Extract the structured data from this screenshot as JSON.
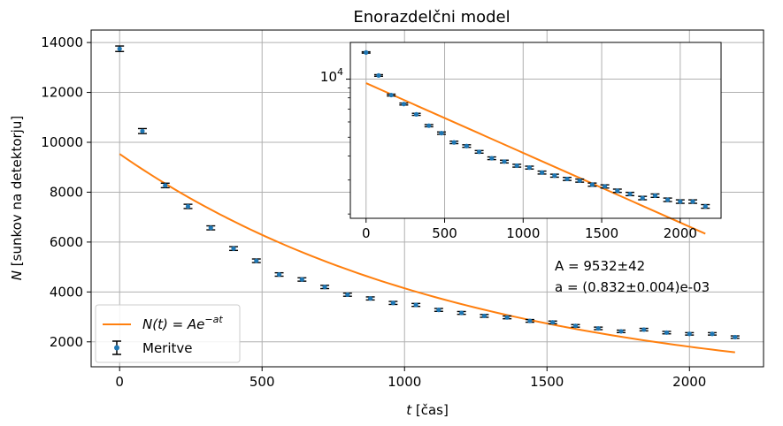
{
  "chart_data": [
    {
      "type": "scatter",
      "title": "Enorazdelčni model",
      "xlabel_var": "t",
      "xlabel_unit": " [čas]",
      "ylabel_var": "N",
      "ylabel_unit": " [sunkov na detektorju]",
      "xlim": [
        -100,
        2260
      ],
      "ylim": [
        1000,
        14500
      ],
      "xticks": [
        "0",
        "500",
        "1000",
        "1500",
        "2000"
      ],
      "yticks": [
        "2000",
        "4000",
        "6000",
        "8000",
        "10000",
        "12000",
        "14000"
      ],
      "grid": true,
      "legend_position": "lower-left",
      "series": [
        {
          "name": "Meritve",
          "kind": "errorbar",
          "color": "#1f77b4",
          "x": [
            0,
            80,
            160,
            240,
            320,
            400,
            480,
            560,
            640,
            720,
            800,
            880,
            960,
            1040,
            1120,
            1200,
            1280,
            1360,
            1440,
            1520,
            1600,
            1680,
            1760,
            1840,
            1920,
            2000,
            2080,
            2160
          ],
          "y": [
            13750,
            10450,
            8270,
            7430,
            6570,
            5740,
            5250,
            4700,
            4500,
            4200,
            3890,
            3740,
            3560,
            3480,
            3280,
            3160,
            3040,
            2980,
            2840,
            2780,
            2640,
            2540,
            2420,
            2490,
            2370,
            2320,
            2320,
            2190
          ],
          "err": [
            110,
            100,
            90,
            85,
            80,
            75,
            72,
            68,
            67,
            65,
            62,
            61,
            60,
            59,
            57,
            56,
            55,
            55,
            53,
            53,
            51,
            50,
            49,
            50,
            49,
            48,
            48,
            47
          ]
        },
        {
          "name": "N(t) = Ae^{-at}",
          "kind": "line",
          "color": "#ff7f0e",
          "A": 9532,
          "a": 0.000832,
          "x_range": [
            0,
            2160
          ]
        }
      ],
      "legend": {
        "fit_label_lhs": "N(t) = Ae",
        "fit_label_exp": "−at",
        "data_label": "Meritve"
      },
      "annotation": {
        "line1": "A = 9532±42",
        "line2": "a = (0.832±0.004)e-03"
      }
    },
    {
      "type": "scatter",
      "title": "",
      "yscale": "log",
      "xlim": [
        -100,
        2260
      ],
      "ylim": [
        1900,
        15500
      ],
      "xticks": [
        "0",
        "500",
        "1000",
        "1500",
        "2000"
      ],
      "ytick_label_base": "10",
      "ytick_label_exp": "4",
      "grid": true,
      "series_ref": "same data and fit as main chart"
    }
  ]
}
